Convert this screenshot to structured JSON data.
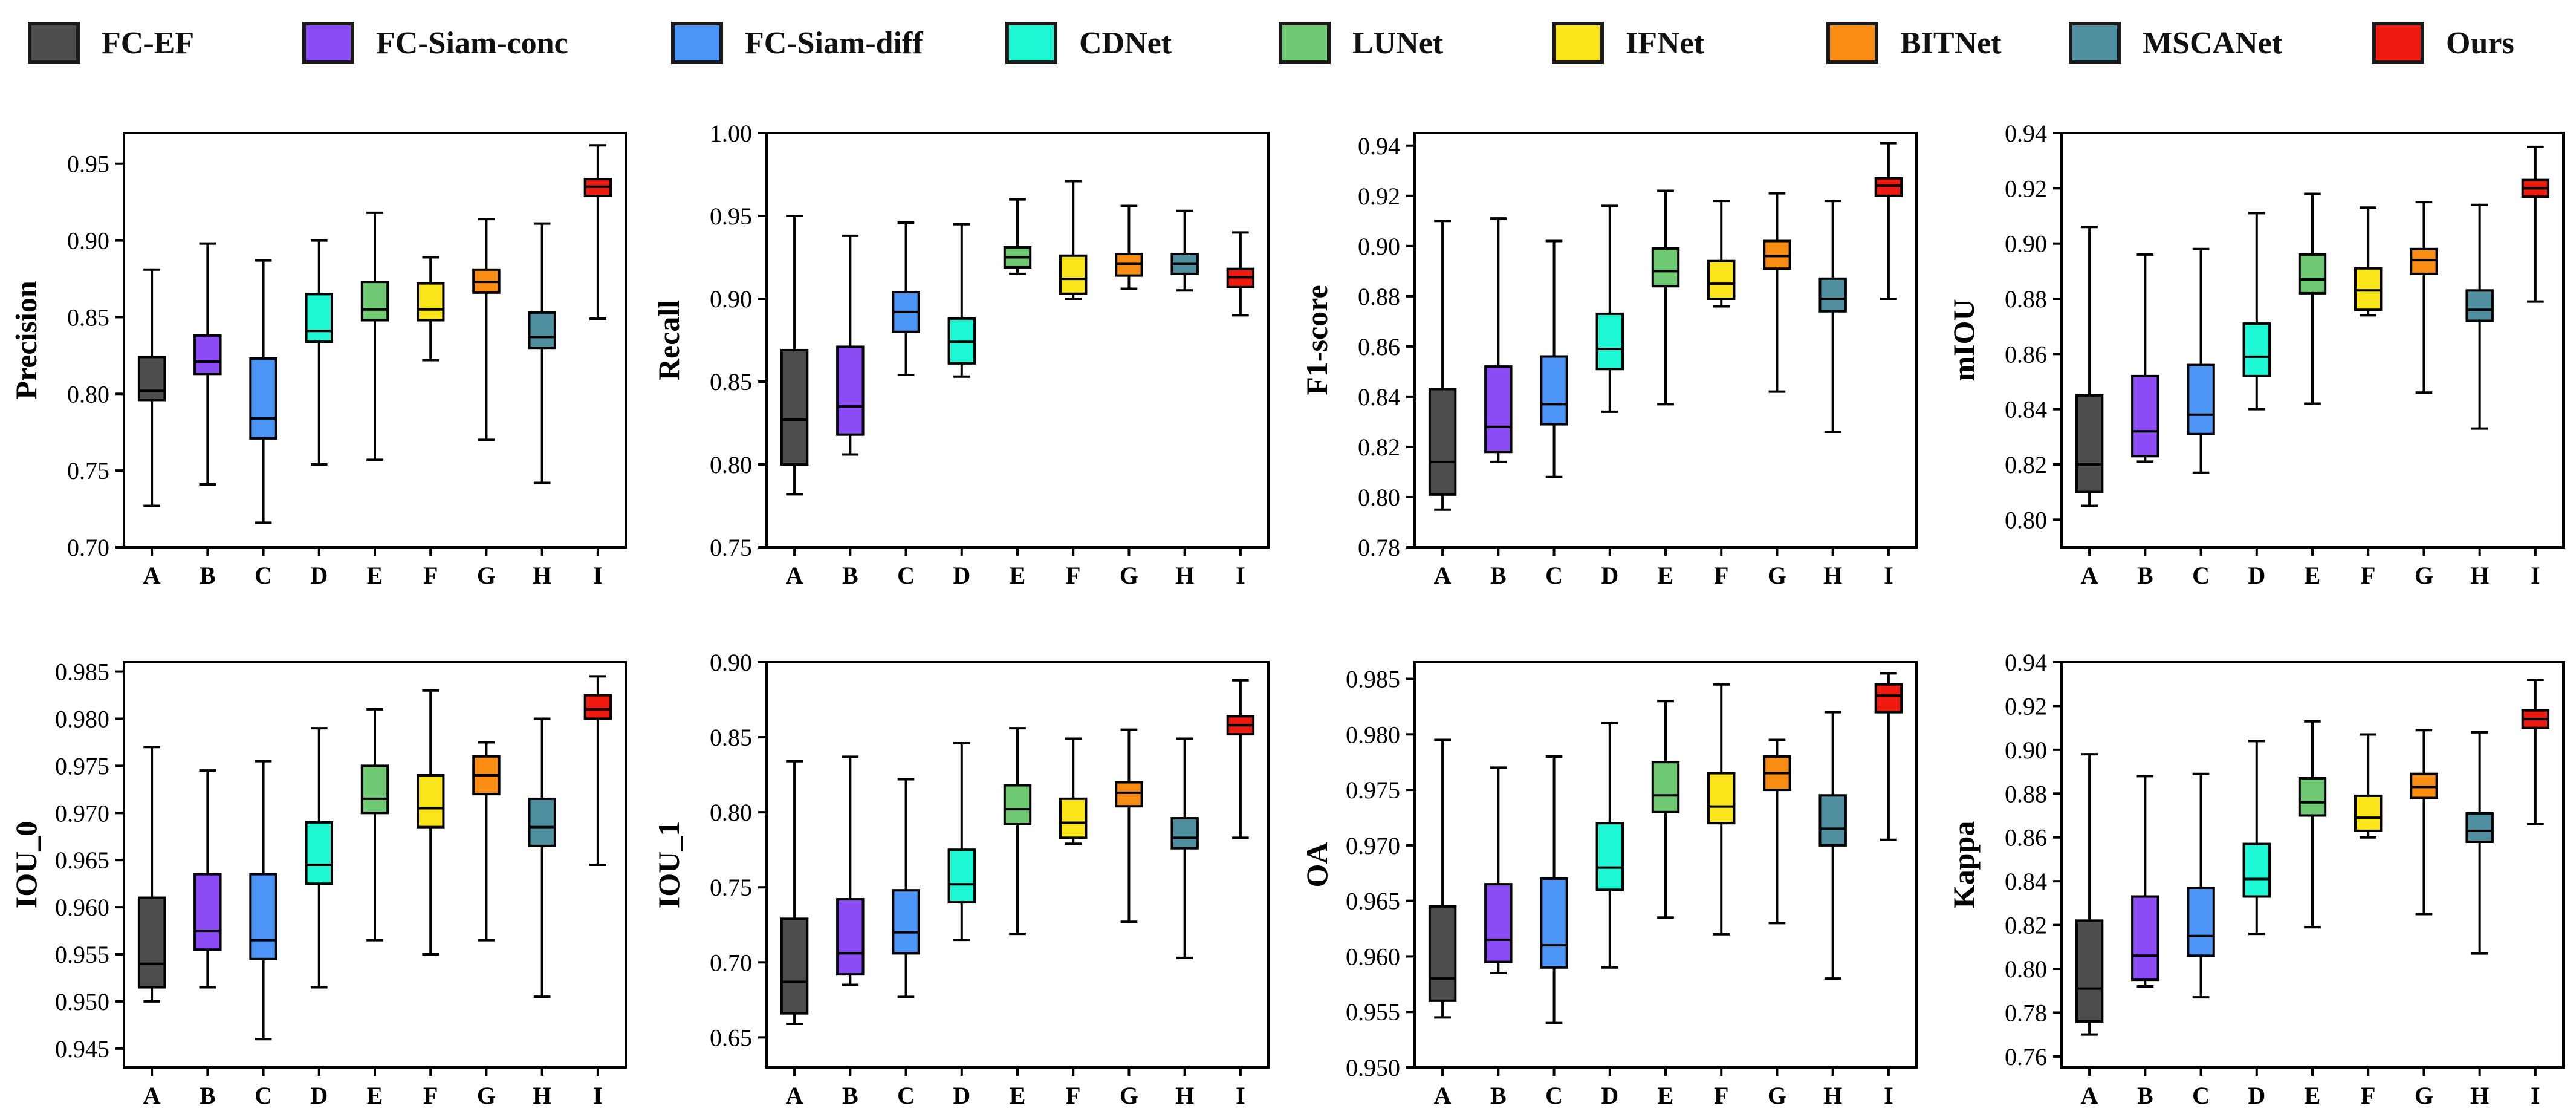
{
  "legend": [
    {
      "name": "FC-EF",
      "color": "#4d4d4d"
    },
    {
      "name": "FC-Siam-conc",
      "color": "#8b4cf5"
    },
    {
      "name": "FC-Siam-diff",
      "color": "#4d94f7"
    },
    {
      "name": "CDNet",
      "color": "#1ef7d4"
    },
    {
      "name": "LUNet",
      "color": "#6fc972"
    },
    {
      "name": "IFNet",
      "color": "#f9e51a"
    },
    {
      "name": "BITNet",
      "color": "#f98c12"
    },
    {
      "name": "MSCANet",
      "color": "#4f8f9f"
    },
    {
      "name": "Ours",
      "color": "#ee1a10"
    }
  ],
  "chart_data": [
    {
      "type": "boxplot",
      "ylabel": "Precision",
      "categories": [
        "A",
        "B",
        "C",
        "D",
        "E",
        "F",
        "G",
        "H",
        "I"
      ],
      "ylim": [
        0.7,
        0.97
      ],
      "yticks": [
        "0.70",
        "0.75",
        "0.80",
        "0.85",
        "0.90",
        "0.95"
      ],
      "boxes": [
        {
          "min": 0.727,
          "q1": 0.796,
          "median": 0.802,
          "q3": 0.824,
          "max": 0.881
        },
        {
          "min": 0.741,
          "q1": 0.813,
          "median": 0.821,
          "q3": 0.838,
          "max": 0.898
        },
        {
          "min": 0.716,
          "q1": 0.771,
          "median": 0.784,
          "q3": 0.823,
          "max": 0.887
        },
        {
          "min": 0.754,
          "q1": 0.834,
          "median": 0.841,
          "q3": 0.865,
          "max": 0.9
        },
        {
          "min": 0.757,
          "q1": 0.848,
          "median": 0.855,
          "q3": 0.873,
          "max": 0.918
        },
        {
          "min": 0.822,
          "q1": 0.848,
          "median": 0.855,
          "q3": 0.872,
          "max": 0.889
        },
        {
          "min": 0.77,
          "q1": 0.866,
          "median": 0.873,
          "q3": 0.881,
          "max": 0.914
        },
        {
          "min": 0.742,
          "q1": 0.83,
          "median": 0.837,
          "q3": 0.853,
          "max": 0.911
        },
        {
          "min": 0.849,
          "q1": 0.929,
          "median": 0.935,
          "q3": 0.94,
          "max": 0.962
        }
      ]
    },
    {
      "type": "boxplot",
      "ylabel": "Recall",
      "categories": [
        "A",
        "B",
        "C",
        "D",
        "E",
        "F",
        "G",
        "H",
        "I"
      ],
      "ylim": [
        0.75,
        1.0
      ],
      "yticks": [
        "0.75",
        "0.80",
        "0.85",
        "0.90",
        "0.95",
        "1.00"
      ],
      "boxes": [
        {
          "min": 0.782,
          "q1": 0.8,
          "median": 0.827,
          "q3": 0.869,
          "max": 0.95
        },
        {
          "min": 0.806,
          "q1": 0.818,
          "median": 0.835,
          "q3": 0.871,
          "max": 0.938
        },
        {
          "min": 0.854,
          "q1": 0.88,
          "median": 0.892,
          "q3": 0.904,
          "max": 0.946
        },
        {
          "min": 0.853,
          "q1": 0.861,
          "median": 0.874,
          "q3": 0.888,
          "max": 0.945
        },
        {
          "min": 0.915,
          "q1": 0.919,
          "median": 0.925,
          "q3": 0.931,
          "max": 0.96
        },
        {
          "min": 0.9,
          "q1": 0.903,
          "median": 0.912,
          "q3": 0.926,
          "max": 0.971
        },
        {
          "min": 0.906,
          "q1": 0.914,
          "median": 0.921,
          "q3": 0.927,
          "max": 0.956
        },
        {
          "min": 0.905,
          "q1": 0.915,
          "median": 0.921,
          "q3": 0.927,
          "max": 0.953
        },
        {
          "min": 0.89,
          "q1": 0.907,
          "median": 0.913,
          "q3": 0.918,
          "max": 0.94
        }
      ]
    },
    {
      "type": "boxplot",
      "ylabel": "F1-score",
      "categories": [
        "A",
        "B",
        "C",
        "D",
        "E",
        "F",
        "G",
        "H",
        "I"
      ],
      "ylim": [
        0.78,
        0.945
      ],
      "yticks": [
        "0.78",
        "0.80",
        "0.82",
        "0.84",
        "0.86",
        "0.88",
        "0.90",
        "0.92",
        "0.94"
      ],
      "boxes": [
        {
          "min": 0.795,
          "q1": 0.801,
          "median": 0.814,
          "q3": 0.843,
          "max": 0.91
        },
        {
          "min": 0.814,
          "q1": 0.818,
          "median": 0.828,
          "q3": 0.852,
          "max": 0.911
        },
        {
          "min": 0.808,
          "q1": 0.829,
          "median": 0.837,
          "q3": 0.856,
          "max": 0.902
        },
        {
          "min": 0.834,
          "q1": 0.851,
          "median": 0.859,
          "q3": 0.873,
          "max": 0.916
        },
        {
          "min": 0.837,
          "q1": 0.884,
          "median": 0.89,
          "q3": 0.899,
          "max": 0.922
        },
        {
          "min": 0.876,
          "q1": 0.879,
          "median": 0.885,
          "q3": 0.894,
          "max": 0.918
        },
        {
          "min": 0.842,
          "q1": 0.891,
          "median": 0.896,
          "q3": 0.902,
          "max": 0.921
        },
        {
          "min": 0.826,
          "q1": 0.874,
          "median": 0.879,
          "q3": 0.887,
          "max": 0.918
        },
        {
          "min": 0.879,
          "q1": 0.92,
          "median": 0.924,
          "q3": 0.927,
          "max": 0.941
        }
      ]
    },
    {
      "type": "boxplot",
      "ylabel": "mIOU",
      "categories": [
        "A",
        "B",
        "C",
        "D",
        "E",
        "F",
        "G",
        "H",
        "I"
      ],
      "ylim": [
        0.79,
        0.94
      ],
      "yticks": [
        "0.80",
        "0.82",
        "0.84",
        "0.86",
        "0.88",
        "0.90",
        "0.92",
        "0.94"
      ],
      "boxes": [
        {
          "min": 0.805,
          "q1": 0.81,
          "median": 0.82,
          "q3": 0.845,
          "max": 0.906
        },
        {
          "min": 0.821,
          "q1": 0.823,
          "median": 0.832,
          "q3": 0.852,
          "max": 0.896
        },
        {
          "min": 0.817,
          "q1": 0.831,
          "median": 0.838,
          "q3": 0.856,
          "max": 0.898
        },
        {
          "min": 0.84,
          "q1": 0.852,
          "median": 0.859,
          "q3": 0.871,
          "max": 0.911
        },
        {
          "min": 0.842,
          "q1": 0.882,
          "median": 0.887,
          "q3": 0.896,
          "max": 0.918
        },
        {
          "min": 0.874,
          "q1": 0.876,
          "median": 0.883,
          "q3": 0.891,
          "max": 0.913
        },
        {
          "min": 0.846,
          "q1": 0.889,
          "median": 0.894,
          "q3": 0.898,
          "max": 0.915
        },
        {
          "min": 0.833,
          "q1": 0.872,
          "median": 0.876,
          "q3": 0.883,
          "max": 0.914
        },
        {
          "min": 0.879,
          "q1": 0.917,
          "median": 0.92,
          "q3": 0.923,
          "max": 0.935
        }
      ]
    },
    {
      "type": "boxplot",
      "ylabel": "IOU_0",
      "categories": [
        "A",
        "B",
        "C",
        "D",
        "E",
        "F",
        "G",
        "H",
        "I"
      ],
      "ylim": [
        0.943,
        0.986
      ],
      "yticks": [
        "0.945",
        "0.950",
        "0.955",
        "0.960",
        "0.965",
        "0.970",
        "0.975",
        "0.980",
        "0.985"
      ],
      "boxes": [
        {
          "min": 0.95,
          "q1": 0.9515,
          "median": 0.954,
          "q3": 0.961,
          "max": 0.977
        },
        {
          "min": 0.9515,
          "q1": 0.9555,
          "median": 0.9575,
          "q3": 0.9635,
          "max": 0.9745
        },
        {
          "min": 0.946,
          "q1": 0.9545,
          "median": 0.9565,
          "q3": 0.9635,
          "max": 0.9755
        },
        {
          "min": 0.9515,
          "q1": 0.9625,
          "median": 0.9645,
          "q3": 0.969,
          "max": 0.979
        },
        {
          "min": 0.9565,
          "q1": 0.97,
          "median": 0.9715,
          "q3": 0.975,
          "max": 0.981
        },
        {
          "min": 0.955,
          "q1": 0.9685,
          "median": 0.9705,
          "q3": 0.974,
          "max": 0.983
        },
        {
          "min": 0.9565,
          "q1": 0.972,
          "median": 0.974,
          "q3": 0.976,
          "max": 0.9775
        },
        {
          "min": 0.9505,
          "q1": 0.9665,
          "median": 0.9685,
          "q3": 0.9715,
          "max": 0.98
        },
        {
          "min": 0.9645,
          "q1": 0.98,
          "median": 0.981,
          "q3": 0.9825,
          "max": 0.9845
        }
      ]
    },
    {
      "type": "boxplot",
      "ylabel": "IOU_1",
      "categories": [
        "A",
        "B",
        "C",
        "D",
        "E",
        "F",
        "G",
        "H",
        "I"
      ],
      "ylim": [
        0.63,
        0.9
      ],
      "yticks": [
        "0.65",
        "0.70",
        "0.75",
        "0.80",
        "0.85",
        "0.90"
      ],
      "boxes": [
        {
          "min": 0.659,
          "q1": 0.666,
          "median": 0.687,
          "q3": 0.729,
          "max": 0.834
        },
        {
          "min": 0.685,
          "q1": 0.692,
          "median": 0.706,
          "q3": 0.742,
          "max": 0.837
        },
        {
          "min": 0.677,
          "q1": 0.706,
          "median": 0.72,
          "q3": 0.748,
          "max": 0.822
        },
        {
          "min": 0.715,
          "q1": 0.74,
          "median": 0.752,
          "q3": 0.775,
          "max": 0.846
        },
        {
          "min": 0.719,
          "q1": 0.792,
          "median": 0.802,
          "q3": 0.818,
          "max": 0.856
        },
        {
          "min": 0.779,
          "q1": 0.783,
          "median": 0.793,
          "q3": 0.809,
          "max": 0.849
        },
        {
          "min": 0.727,
          "q1": 0.804,
          "median": 0.813,
          "q3": 0.82,
          "max": 0.855
        },
        {
          "min": 0.703,
          "q1": 0.776,
          "median": 0.783,
          "q3": 0.796,
          "max": 0.849
        },
        {
          "min": 0.783,
          "q1": 0.852,
          "median": 0.858,
          "q3": 0.864,
          "max": 0.888
        }
      ]
    },
    {
      "type": "boxplot",
      "ylabel": "OA",
      "categories": [
        "A",
        "B",
        "C",
        "D",
        "E",
        "F",
        "G",
        "H",
        "I"
      ],
      "ylim": [
        0.95,
        0.9865
      ],
      "yticks": [
        "0.950",
        "0.955",
        "0.960",
        "0.965",
        "0.970",
        "0.975",
        "0.980",
        "0.985"
      ],
      "boxes": [
        {
          "min": 0.9545,
          "q1": 0.956,
          "median": 0.958,
          "q3": 0.9645,
          "max": 0.9795
        },
        {
          "min": 0.9585,
          "q1": 0.9595,
          "median": 0.9615,
          "q3": 0.9665,
          "max": 0.977
        },
        {
          "min": 0.954,
          "q1": 0.959,
          "median": 0.961,
          "q3": 0.967,
          "max": 0.978
        },
        {
          "min": 0.959,
          "q1": 0.966,
          "median": 0.968,
          "q3": 0.972,
          "max": 0.981
        },
        {
          "min": 0.9635,
          "q1": 0.973,
          "median": 0.9745,
          "q3": 0.9775,
          "max": 0.983
        },
        {
          "min": 0.962,
          "q1": 0.972,
          "median": 0.9735,
          "q3": 0.9765,
          "max": 0.9845
        },
        {
          "min": 0.963,
          "q1": 0.975,
          "median": 0.9765,
          "q3": 0.978,
          "max": 0.9795
        },
        {
          "min": 0.958,
          "q1": 0.97,
          "median": 0.9715,
          "q3": 0.9745,
          "max": 0.982
        },
        {
          "min": 0.9705,
          "q1": 0.982,
          "median": 0.9835,
          "q3": 0.9845,
          "max": 0.9855
        }
      ]
    },
    {
      "type": "boxplot",
      "ylabel": "Kappa",
      "categories": [
        "A",
        "B",
        "C",
        "D",
        "E",
        "F",
        "G",
        "H",
        "I"
      ],
      "ylim": [
        0.755,
        0.94
      ],
      "yticks": [
        "0.76",
        "0.78",
        "0.80",
        "0.82",
        "0.84",
        "0.86",
        "0.88",
        "0.90",
        "0.92",
        "0.94"
      ],
      "boxes": [
        {
          "min": 0.77,
          "q1": 0.776,
          "median": 0.791,
          "q3": 0.822,
          "max": 0.898
        },
        {
          "min": 0.792,
          "q1": 0.795,
          "median": 0.806,
          "q3": 0.833,
          "max": 0.888
        },
        {
          "min": 0.787,
          "q1": 0.806,
          "median": 0.815,
          "q3": 0.837,
          "max": 0.889
        },
        {
          "min": 0.816,
          "q1": 0.833,
          "median": 0.841,
          "q3": 0.857,
          "max": 0.904
        },
        {
          "min": 0.819,
          "q1": 0.87,
          "median": 0.876,
          "q3": 0.887,
          "max": 0.913
        },
        {
          "min": 0.86,
          "q1": 0.863,
          "median": 0.869,
          "q3": 0.879,
          "max": 0.907
        },
        {
          "min": 0.825,
          "q1": 0.878,
          "median": 0.883,
          "q3": 0.889,
          "max": 0.909
        },
        {
          "min": 0.807,
          "q1": 0.858,
          "median": 0.863,
          "q3": 0.871,
          "max": 0.908
        },
        {
          "min": 0.866,
          "q1": 0.91,
          "median": 0.914,
          "q3": 0.918,
          "max": 0.932
        }
      ]
    }
  ]
}
